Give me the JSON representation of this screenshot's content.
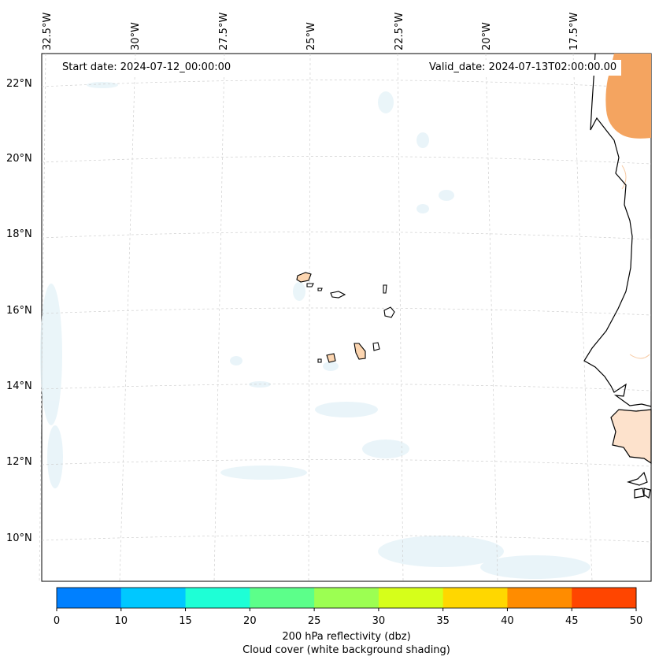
{
  "map": {
    "start_date": "Start date: 2024-07-12_00:00:00",
    "valid_date": "Valid_date: 2024-07-13T02:00:00.00",
    "lon_labels": [
      "32.5°W",
      "30°W",
      "27.5°W",
      "25°W",
      "22.5°W",
      "20°W",
      "17.5°W"
    ],
    "lat_labels": [
      "22°N",
      "20°N",
      "18°N",
      "16°N",
      "14°N",
      "12°N",
      "10°N"
    ],
    "land_fill_color": "#f4a460",
    "cloud_color": "#e6f3f8",
    "coastline_color": "#000000"
  },
  "colorbar": {
    "colors": [
      "#0080ff",
      "#00c8ff",
      "#1effd6",
      "#5cff8a",
      "#9cff52",
      "#d6ff1a",
      "#ffd700",
      "#ff8c00",
      "#ff4500"
    ],
    "ticks": [
      "0",
      "10",
      "15",
      "20",
      "25",
      "30",
      "35",
      "40",
      "45",
      "50"
    ],
    "label_line1": "200 hPa reflectivity (dbz)",
    "label_line2": "Cloud cover (white background shading)"
  }
}
